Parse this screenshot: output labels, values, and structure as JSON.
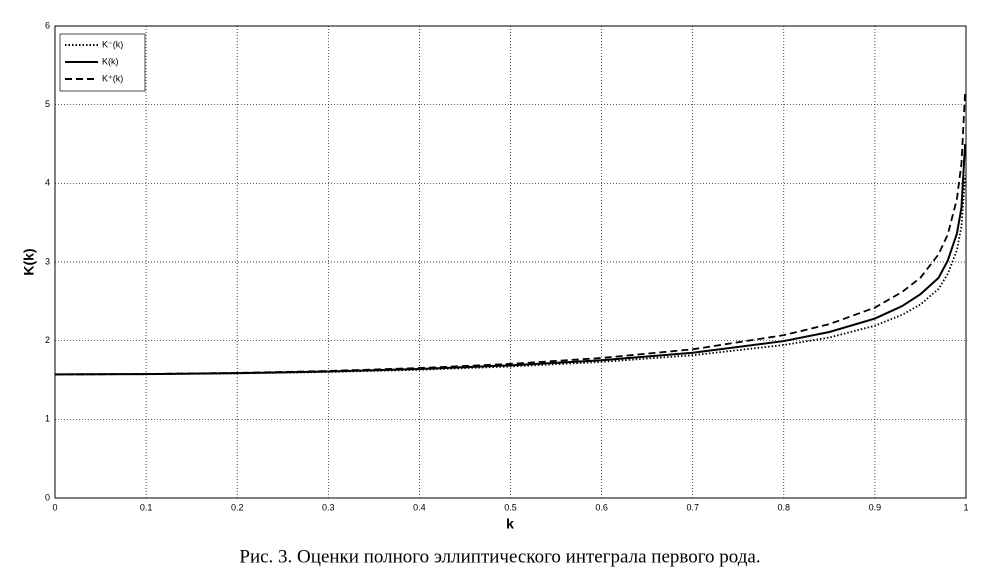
{
  "chart_data": {
    "type": "line",
    "x": [
      0,
      0.1,
      0.2,
      0.3,
      0.4,
      0.5,
      0.6,
      0.7,
      0.8,
      0.85,
      0.9,
      0.93,
      0.95,
      0.97,
      0.98,
      0.99,
      0.995,
      0.999
    ],
    "series": [
      {
        "name": "K⁻(k)",
        "color": "#000000",
        "style": "dotted",
        "values": [
          1.571,
          1.574,
          1.584,
          1.602,
          1.63,
          1.672,
          1.73,
          1.815,
          1.945,
          2.04,
          2.19,
          2.33,
          2.46,
          2.66,
          2.85,
          3.15,
          3.45,
          4.1
        ]
      },
      {
        "name": "K(k)",
        "color": "#000000",
        "style": "solid",
        "values": [
          1.571,
          1.575,
          1.587,
          1.608,
          1.64,
          1.686,
          1.751,
          1.846,
          1.995,
          2.11,
          2.281,
          2.44,
          2.59,
          2.8,
          3.02,
          3.36,
          3.69,
          4.5
        ]
      },
      {
        "name": "K⁺(k)",
        "color": "#000000",
        "style": "dashed",
        "values": [
          1.571,
          1.576,
          1.59,
          1.615,
          1.652,
          1.705,
          1.78,
          1.89,
          2.07,
          2.21,
          2.42,
          2.62,
          2.8,
          3.1,
          3.35,
          3.8,
          4.25,
          5.15
        ]
      }
    ],
    "xlabel": "k",
    "ylabel": "K(k)",
    "xlim": [
      0,
      1
    ],
    "xticks": [
      0,
      0.1,
      0.2,
      0.3,
      0.4,
      0.5,
      0.6,
      0.7,
      0.8,
      0.9,
      1
    ],
    "ylim": [
      0,
      6
    ],
    "yticks": [
      0,
      1,
      2,
      3,
      4,
      5,
      6
    ],
    "grid": true,
    "legend": "upper-left",
    "caption": "Рис. 3. Оценки полного эллиптического интеграла первого рода."
  }
}
